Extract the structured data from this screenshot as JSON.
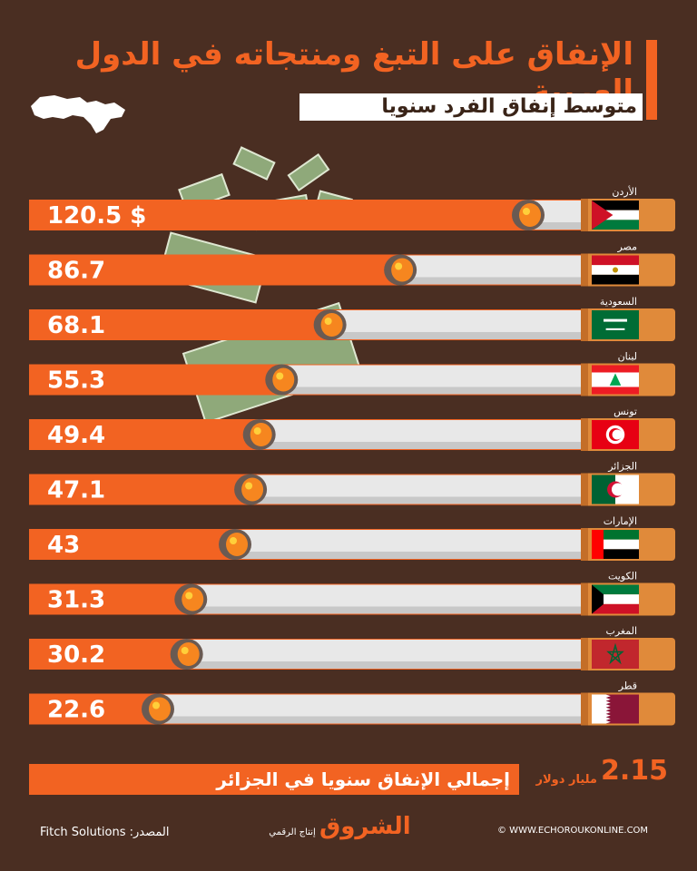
{
  "header": {
    "title": "الإنفاق على التبغ ومنتجاته في الدول العربية",
    "subtitle": "متوسط إنفاق الفرد سنويا"
  },
  "colors": {
    "background": "#4a2e22",
    "accent": "#f26322",
    "filter": "#e08a3a",
    "paper": "#e8e8e8"
  },
  "chart_data": {
    "type": "bar",
    "categories": [
      "الأردن",
      "مصر",
      "السعودية",
      "لبنان",
      "تونس",
      "الجزائر",
      "الإمارات",
      "الكويت",
      "المغرب",
      "قطر"
    ],
    "values": [
      120.5,
      86.7,
      68.1,
      55.3,
      49.4,
      47.1,
      43,
      31.3,
      30.2,
      22.6
    ],
    "value_labels": [
      "120.5 $",
      "86.7",
      "68.1",
      "55.3",
      "49.4",
      "47.1",
      "43",
      "31.3",
      "30.2",
      "22.6"
    ],
    "flags": [
      "jordan",
      "egypt",
      "saudi",
      "lebanon",
      "tunisia",
      "algeria",
      "uae",
      "kuwait",
      "morocco",
      "qatar"
    ],
    "unit": "$",
    "orientation": "horizontal",
    "title": "متوسط إنفاق الفرد سنويا"
  },
  "total": {
    "value": "2.15",
    "unit": "مليار دولار",
    "label": "إجمالي الإنفاق سنويا في الجزائر"
  },
  "footer": {
    "source": "Fitch Solutions :المصدر",
    "production": "إنتاج الرقمي",
    "brand": "الشروق",
    "website": "© WWW.ECHOROUKONLINE.COM"
  }
}
